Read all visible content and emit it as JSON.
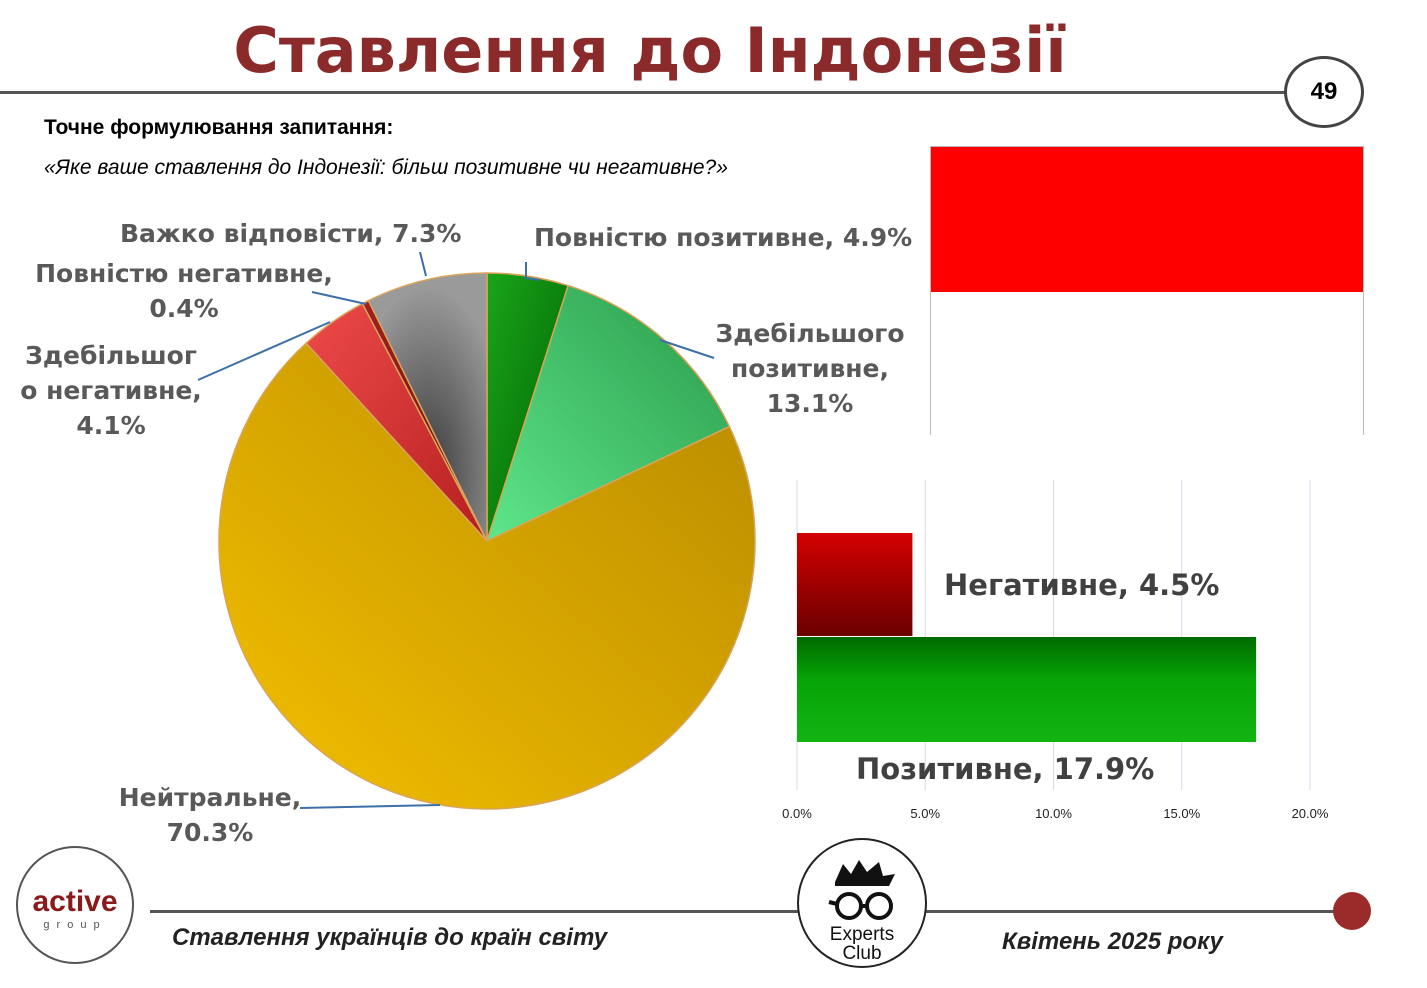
{
  "header": {
    "title": "Ставлення до Індонезії",
    "page_number": "49"
  },
  "question": {
    "label": "Точне формулювання запитання:",
    "text": "«Яке ваше ставлення до Індонезії: більш позитивне чи негативне?»"
  },
  "flag": {
    "top_color": "#ff0000",
    "bottom_color": "#ffffff"
  },
  "footer": {
    "left_text": "Ставлення українців до країн світу",
    "right_text": "Квітень 2025 року",
    "logo_left": {
      "main": "active",
      "sub": "group"
    },
    "logo_right": {
      "line1": "Experts",
      "line2": "Club"
    },
    "accent": "#9b2a2a"
  },
  "chart_data": [
    {
      "type": "pie",
      "slices": [
        {
          "name": "Повністю позитивне",
          "value": 4.9,
          "label_lines": [
            "Повністю позитивне, 4.9%"
          ],
          "color": "#0a8a0a"
        },
        {
          "name": "Здебільшого позитивне",
          "value": 13.1,
          "label_lines": [
            "Здебільшого",
            "позитивне,",
            "13.1%"
          ],
          "color": "#3ccf6a"
        },
        {
          "name": "Нейтральне",
          "value": 70.3,
          "label_lines": [
            "Нейтральне,",
            "70.3%"
          ],
          "color": "#e2a800"
        },
        {
          "name": "Здебільшого негативне",
          "value": 4.1,
          "label_lines": [
            "Здебільшог",
            "о негативне,",
            "4.1%"
          ],
          "color": "#dc3535"
        },
        {
          "name": "Повністю негативне",
          "value": 0.4,
          "label_lines": [
            "Повністю негативне,",
            "0.4%"
          ],
          "color": "#8b1a1a"
        },
        {
          "name": "Важко відповісти",
          "value": 7.3,
          "label_lines": [
            "Важко відповісти, 7.3%"
          ],
          "color": "#6a6a6a"
        }
      ]
    },
    {
      "type": "bar",
      "orientation": "horizontal",
      "categories": [
        "Негативне",
        "Позитивне"
      ],
      "values": [
        4.5,
        17.9
      ],
      "labels": [
        "Негативне, 4.5%",
        "Позитивне, 17.9%"
      ],
      "colors": [
        "#c00000",
        "#0aa80a"
      ],
      "xlim": [
        0,
        20
      ],
      "ticks": [
        "0.0%",
        "5.0%",
        "10.0%",
        "15.0%",
        "20.0%"
      ],
      "grid": true
    }
  ]
}
